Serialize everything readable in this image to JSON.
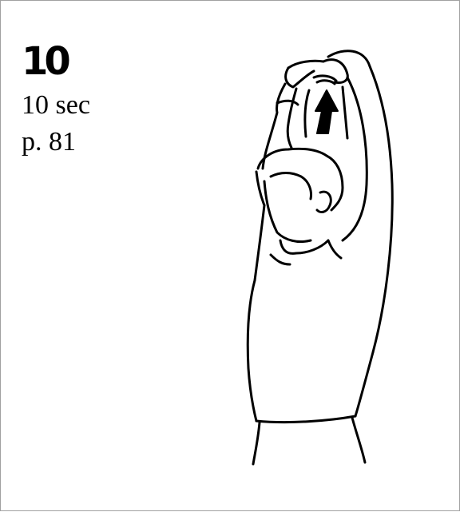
{
  "step": {
    "number": "10",
    "duration": "10 sec",
    "page": "p. 81"
  },
  "illustration": {
    "icon": "overhead-arm-stretch-figure-icon",
    "arrow_icon": "up-arrow-icon"
  }
}
